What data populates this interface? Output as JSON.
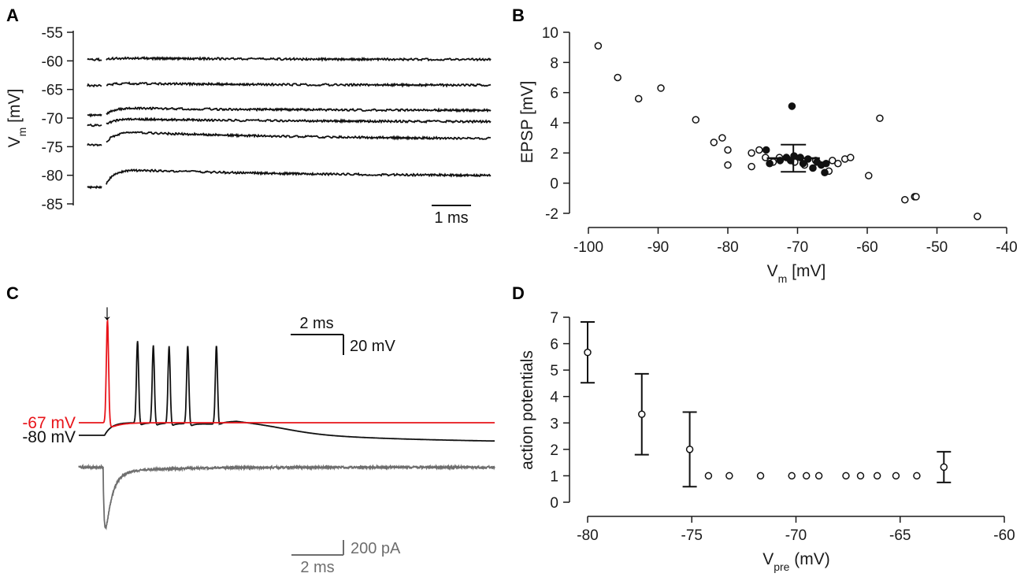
{
  "panels": {
    "A": {
      "letter": "A",
      "chart_data": {
        "type": "line",
        "ylabel": "V",
        "ylabel_sub": "m",
        "ylabel_unit": " [mV]",
        "yticks": [
          "-55",
          "-60",
          "-65",
          "-70",
          "-75",
          "-80",
          "-85"
        ],
        "ytick_values": [
          -55,
          -60,
          -65,
          -70,
          -75,
          -80,
          -85
        ],
        "ylim": [
          -85,
          -55
        ],
        "xlim_ms": [
          0,
          7.1
        ],
        "scale_bar_label": "1 ms",
        "scale_bar_ms": 1,
        "series": [
          {
            "name": "trace-1",
            "baseline": -59.7,
            "epsp": 0.3,
            "tail": 0.0
          },
          {
            "name": "trace-2",
            "baseline": -64.2,
            "epsp": 0.4,
            "tail": 0.0
          },
          {
            "name": "trace-3",
            "baseline": -69.4,
            "epsp": 1.3,
            "tail": 0.6
          },
          {
            "name": "trace-4",
            "baseline": -71.2,
            "epsp": 1.2,
            "tail": 0.5
          },
          {
            "name": "trace-5",
            "baseline": -74.6,
            "epsp": 2.4,
            "tail": 0.4
          },
          {
            "name": "trace-6",
            "baseline": -82.0,
            "epsp": 3.2,
            "tail": 0.6
          }
        ]
      }
    },
    "B": {
      "letter": "B",
      "chart_data": {
        "type": "scatter",
        "xlabel": "V",
        "xlabel_sub": "m",
        "xlabel_unit": " [mV]",
        "ylabel": "EPSP [mV]",
        "xlim": [
          -100,
          -40
        ],
        "ylim": [
          -2,
          10
        ],
        "xticks": [
          -100,
          -90,
          -80,
          -70,
          -60,
          -50,
          -40
        ],
        "xtick_labels": [
          "-100",
          "-90",
          "-80",
          "-70",
          "-60",
          "-50",
          "-40"
        ],
        "yticks": [
          -2,
          0,
          2,
          4,
          6,
          8,
          10
        ],
        "ytick_labels": [
          "-2",
          "0",
          "2",
          "4",
          "6",
          "8",
          "10"
        ],
        "open_points": [
          [
            -98.6,
            9.1
          ],
          [
            -95.8,
            7.0
          ],
          [
            -92.8,
            5.6
          ],
          [
            -89.6,
            6.3
          ],
          [
            -84.6,
            4.2
          ],
          [
            -82.0,
            2.7
          ],
          [
            -80.8,
            3.0
          ],
          [
            -80.0,
            2.2
          ],
          [
            -80.0,
            1.2
          ],
          [
            -76.6,
            2.0
          ],
          [
            -76.6,
            1.1
          ],
          [
            -75.5,
            2.2
          ],
          [
            -74.6,
            1.7
          ],
          [
            -73.5,
            1.4
          ],
          [
            -72.6,
            1.7
          ],
          [
            -70.4,
            1.4
          ],
          [
            -69.0,
            1.2
          ],
          [
            -67.4,
            1.5
          ],
          [
            -65.5,
            0.8
          ],
          [
            -65.0,
            1.5
          ],
          [
            -64.2,
            1.3
          ],
          [
            -63.2,
            1.6
          ],
          [
            -62.4,
            1.7
          ],
          [
            -59.8,
            0.5
          ],
          [
            -58.2,
            4.3
          ],
          [
            -54.6,
            -1.1
          ],
          [
            -53.2,
            -0.9
          ],
          [
            -53.0,
            -0.9
          ],
          [
            -44.2,
            -2.2
          ]
        ],
        "filled_points": [
          [
            -70.8,
            5.1
          ],
          [
            -74.5,
            2.2
          ],
          [
            -74.0,
            1.3
          ],
          [
            -72.5,
            1.5
          ],
          [
            -71.6,
            1.7
          ],
          [
            -71.0,
            1.5
          ],
          [
            -70.5,
            1.8
          ],
          [
            -69.6,
            1.7
          ],
          [
            -69.2,
            1.3
          ],
          [
            -68.5,
            1.6
          ],
          [
            -67.8,
            1.0
          ],
          [
            -67.2,
            1.4
          ],
          [
            -66.6,
            1.2
          ],
          [
            -66.1,
            0.7
          ],
          [
            -65.9,
            1.3
          ]
        ],
        "summary": {
          "x": -70.6,
          "y": 1.65,
          "err": 0.9,
          "xerr": 3.8
        }
      }
    },
    "C": {
      "letter": "C",
      "chart_data": {
        "type": "line",
        "arrow_glyph": "↓",
        "label_red": "-67 mV",
        "label_black": "-80 mV",
        "color_red": "#e8141a",
        "color_black": "#111111",
        "color_current": "#6e6e6e",
        "scale_bar_time_label": "2 ms",
        "scale_bar_voltage_label": "20 mV",
        "scale_bar_time2_label": "2 ms",
        "scale_bar_current_label": "200 pA",
        "duration_ms": 14.5,
        "stim_ms": 0.9,
        "red_ap_ms": 1.0,
        "black_ap_ms": [
          2.05,
          2.6,
          3.15,
          3.8,
          4.8
        ],
        "black_ap_peaks_mv": [
          23,
          19,
          18.5,
          19,
          20
        ]
      }
    },
    "D": {
      "letter": "D",
      "chart_data": {
        "type": "scatter",
        "xlabel": "V",
        "xlabel_sub": "pre",
        "xlabel_unit": " (mV)",
        "ylabel": "action potentials",
        "xlim": [
          -80,
          -60
        ],
        "ylim": [
          0,
          7
        ],
        "xticks": [
          -80,
          -75,
          -70,
          -65,
          -60
        ],
        "xtick_labels": [
          "-80",
          "-75",
          "-70",
          "-65",
          "-60"
        ],
        "yticks": [
          0,
          1,
          2,
          3,
          4,
          5,
          6,
          7
        ],
        "ytick_labels": [
          "0",
          "1",
          "2",
          "3",
          "4",
          "5",
          "6",
          "7"
        ],
        "points": [
          {
            "x": -80.0,
            "y": 5.67,
            "err": 1.15
          },
          {
            "x": -77.4,
            "y": 3.33,
            "err": 1.53
          },
          {
            "x": -75.1,
            "y": 2.0,
            "err": 1.41
          },
          {
            "x": -74.2,
            "y": 1.0,
            "err": 0
          },
          {
            "x": -73.2,
            "y": 1.0,
            "err": 0
          },
          {
            "x": -71.7,
            "y": 1.0,
            "err": 0
          },
          {
            "x": -70.2,
            "y": 1.0,
            "err": 0
          },
          {
            "x": -69.5,
            "y": 1.0,
            "err": 0
          },
          {
            "x": -68.9,
            "y": 1.0,
            "err": 0
          },
          {
            "x": -67.6,
            "y": 1.0,
            "err": 0
          },
          {
            "x": -66.9,
            "y": 1.0,
            "err": 0
          },
          {
            "x": -66.1,
            "y": 1.0,
            "err": 0
          },
          {
            "x": -65.2,
            "y": 1.0,
            "err": 0
          },
          {
            "x": -64.2,
            "y": 1.0,
            "err": 0
          },
          {
            "x": -62.9,
            "y": 1.33,
            "err": 0.58
          }
        ]
      }
    }
  }
}
